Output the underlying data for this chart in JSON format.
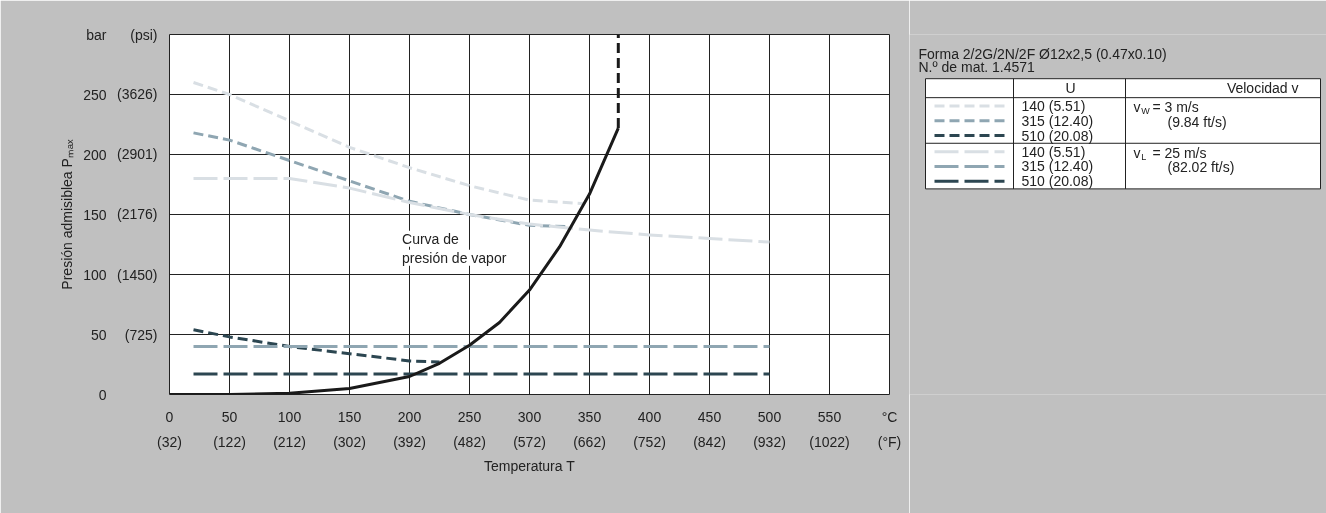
{
  "chart_data": {
    "type": "line",
    "xlabel": "Temperatura T",
    "ylabel": "Presión admisiblea Pₘₐₓ",
    "legend_title": "Forma 2/2G/2N/2F   Ø12x2,5 (0.47x0.10)\nN.º de mat. 1.4571",
    "xlim": [
      0,
      600
    ],
    "ylim": [
      0,
      300
    ],
    "xticks": [
      0,
      50,
      100,
      150,
      200,
      250,
      300,
      350,
      400,
      450,
      500,
      550,
      {
        "value": 600,
        "label": "°C"
      }
    ],
    "x2lim": [
      32,
      1112
    ],
    "x2ticks": [
      {
        "value": 32,
        "label": "(32)"
      },
      {
        "value": 122,
        "label": "(122)"
      },
      {
        "value": 212,
        "label": "(212)"
      },
      {
        "value": 302,
        "label": "(302)"
      },
      {
        "value": 392,
        "label": "(392)"
      },
      {
        "value": 482,
        "label": "(482)"
      },
      {
        "value": 572,
        "label": "(572)"
      },
      {
        "value": 662,
        "label": "(662)"
      },
      {
        "value": 752,
        "label": "(752)"
      },
      {
        "value": 842,
        "label": "(842)"
      },
      {
        "value": 932,
        "label": "(932)"
      },
      {
        "value": 1022,
        "label": "(1022)"
      },
      {
        "value": 1112,
        "label": "(°F)"
      }
    ],
    "yticks": [
      0,
      50,
      100,
      150,
      200,
      250,
      {
        "value": 300,
        "label": "bar"
      }
    ],
    "y2lim": [
      0,
      4351
    ],
    "y2ticks": [
      {
        "value": 725,
        "label": "(725)"
      },
      {
        "value": 1450,
        "label": "(1450)"
      },
      {
        "value": 2176,
        "label": "(2176)"
      },
      {
        "value": 2901,
        "label": "(2901)"
      },
      {
        "value": 3626,
        "label": "(3626)"
      },
      {
        "value": 4351,
        "label": "(psi)"
      }
    ],
    "grid": true,
    "legend": "right",
    "marker": "none",
    "series": [
      {
        "name": "140 (5.51)",
        "color": "#d9dfe4",
        "line_style": "dashed",
        "x": [
          20,
          50,
          100,
          150,
          200,
          250,
          300,
          345
        ],
        "values": [
          260,
          250,
          228,
          206,
          189,
          174,
          162,
          159
        ]
      },
      {
        "name": "315 (12.40)",
        "color": "#8fa6b2",
        "line_style": "dashed",
        "x": [
          20,
          50,
          100,
          150,
          200,
          250,
          300,
          330
        ],
        "values": [
          218,
          212,
          195,
          178,
          161,
          150,
          141,
          140
        ]
      },
      {
        "name": "510 (20.08)",
        "color": "#2c4651",
        "line_style": "dashed",
        "x": [
          20,
          50,
          100,
          150,
          200,
          225
        ],
        "values": [
          54,
          48,
          40,
          34,
          28,
          27
        ]
      },
      {
        "name": "140 (5.51)",
        "color": "#d9dfe4",
        "line_style": "dashed",
        "x": [
          20,
          100,
          150,
          200,
          250,
          300,
          350,
          400,
          450,
          500
        ],
        "values": [
          180,
          180,
          172,
          160,
          150,
          142,
          137,
          133,
          130,
          127
        ]
      },
      {
        "name": "315 (12.40)",
        "color": "#8fa6b2",
        "line_style": "dashed",
        "x": [
          20,
          500
        ],
        "values": [
          40,
          40
        ]
      },
      {
        "name": "510 (20.08)",
        "color": "#2c4651",
        "line_style": "dashed",
        "x": [
          20,
          500
        ],
        "values": [
          17,
          17
        ]
      },
      {
        "color": "#1a1a1a",
        "line_style": "solid",
        "x": [
          0,
          50,
          100,
          150,
          200,
          225,
          250,
          275,
          300,
          325,
          350,
          374
        ],
        "values": [
          0,
          0,
          1,
          5,
          15,
          26,
          41,
          60,
          87,
          123,
          167,
          222
        ]
      },
      {
        "color": "#1a1a1a",
        "line_style": "dashed",
        "x": [
          374,
          374
        ],
        "values": [
          222,
          300
        ]
      }
    ],
    "annotations": [
      "Curva de\npresión de vapor",
      "U",
      "Velocidad v",
      "v$_{W}$ = 3 m/s\n(9.84 ft/s)",
      "v$_{L}$ = 25 m/s\n(82.02 ft/s)"
    ]
  }
}
